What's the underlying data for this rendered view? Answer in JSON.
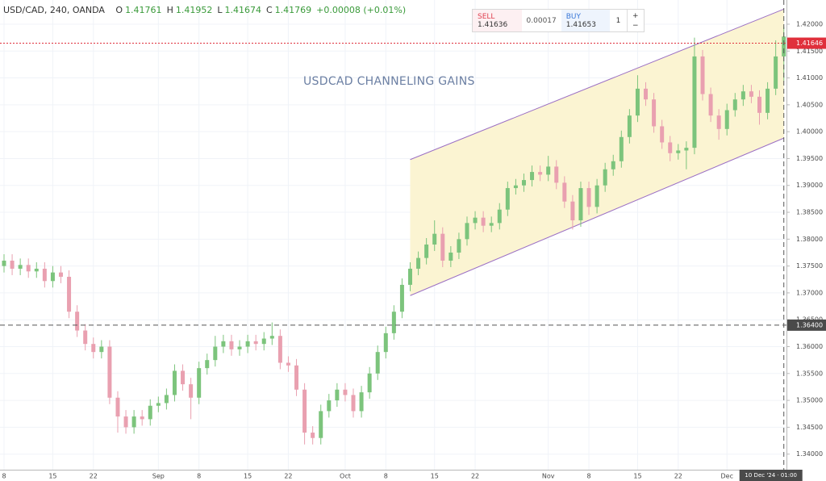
{
  "chart_data": {
    "type": "candlestick",
    "legend": {
      "symbol": "USD/CAD, 240, OANDA",
      "fields": [
        {
          "key": "O",
          "value": "1.41761"
        },
        {
          "key": "H",
          "value": "1.41952"
        },
        {
          "key": "L",
          "value": "1.41674"
        },
        {
          "key": "C",
          "value": "1.41769"
        }
      ],
      "change": "+0.00008 (+0.01%)"
    },
    "trade": {
      "sell_label": "SELL",
      "sell_price": "1.41636",
      "spread": "0.00017",
      "buy_label": "BUY",
      "buy_price": "1.41653",
      "quantity": "1",
      "plus": "+",
      "minus": "−"
    },
    "annotation": "USDCAD CHANNELING GAINS",
    "categories": [
      "8",
      null,
      null,
      null,
      null,
      null,
      "15",
      null,
      null,
      null,
      null,
      "22",
      null,
      null,
      null,
      null,
      null,
      null,
      null,
      "Sep",
      null,
      null,
      null,
      null,
      "8",
      null,
      null,
      null,
      null,
      null,
      "15",
      null,
      null,
      null,
      null,
      "22",
      null,
      null,
      null,
      null,
      null,
      null,
      "Oct",
      null,
      null,
      null,
      null,
      "8",
      null,
      null,
      null,
      null,
      null,
      "15",
      null,
      null,
      null,
      null,
      "22",
      null,
      null,
      null,
      null,
      null,
      null,
      null,
      null,
      "Nov",
      null,
      null,
      null,
      null,
      "8",
      null,
      null,
      null,
      null,
      null,
      "15",
      null,
      null,
      null,
      null,
      "22",
      null,
      null,
      null,
      null,
      null,
      "Dec",
      null,
      null,
      null,
      null,
      null,
      null,
      null
    ],
    "open": [
      1.375,
      1.376,
      1.3745,
      1.3752,
      1.374,
      1.3745,
      1.3722,
      1.3738,
      1.373,
      1.3665,
      1.363,
      1.3605,
      1.359,
      1.36,
      1.3505,
      1.347,
      1.345,
      1.347,
      1.3465,
      1.349,
      1.3495,
      1.351,
      1.3555,
      1.353,
      1.3505,
      1.356,
      1.3575,
      1.36,
      1.361,
      1.3595,
      1.36,
      1.361,
      1.3605,
      1.3615,
      1.362,
      1.357,
      1.3565,
      1.352,
      1.344,
      1.343,
      1.348,
      1.35,
      1.352,
      1.351,
      1.348,
      1.3515,
      1.355,
      1.359,
      1.3625,
      1.3665,
      1.3715,
      1.3745,
      1.3765,
      1.379,
      1.381,
      1.376,
      1.3775,
      1.38,
      1.383,
      1.384,
      1.3825,
      1.383,
      1.3855,
      1.3895,
      1.39,
      1.391,
      1.3925,
      1.392,
      1.3935,
      1.3905,
      1.387,
      1.3835,
      1.3895,
      1.386,
      1.39,
      1.393,
      1.3945,
      1.399,
      1.403,
      1.408,
      1.406,
      1.401,
      1.398,
      1.396,
      1.3965,
      1.397,
      1.414,
      1.407,
      1.403,
      1.4005,
      1.404,
      1.406,
      1.4075,
      1.4065,
      1.4035,
      1.408,
      1.414
    ],
    "high": [
      1.3772,
      1.3772,
      1.3764,
      1.3764,
      1.3757,
      1.3757,
      1.375,
      1.375,
      1.3742,
      1.3677,
      1.3642,
      1.3617,
      1.3612,
      1.3612,
      1.3517,
      1.3482,
      1.3482,
      1.3482,
      1.3502,
      1.3507,
      1.3522,
      1.3567,
      1.3567,
      1.3542,
      1.3572,
      1.3587,
      1.362,
      1.3622,
      1.3622,
      1.3612,
      1.3622,
      1.3622,
      1.3627,
      1.3645,
      1.3632,
      1.3582,
      1.3577,
      1.3532,
      1.3452,
      1.3492,
      1.3512,
      1.3532,
      1.3532,
      1.3522,
      1.3527,
      1.3562,
      1.3602,
      1.3637,
      1.3677,
      1.3727,
      1.3757,
      1.3777,
      1.3802,
      1.3835,
      1.3822,
      1.3787,
      1.3812,
      1.3842,
      1.3852,
      1.3852,
      1.3842,
      1.3867,
      1.3907,
      1.3912,
      1.3922,
      1.3937,
      1.3937,
      1.3955,
      1.3947,
      1.3917,
      1.3882,
      1.3907,
      1.3907,
      1.3912,
      1.3942,
      1.3957,
      1.4002,
      1.4042,
      1.4105,
      1.4092,
      1.4072,
      1.4022,
      1.3992,
      1.3977,
      1.3982,
      1.4175,
      1.4152,
      1.4082,
      1.4042,
      1.4052,
      1.4072,
      1.4087,
      1.4087,
      1.4077,
      1.4092,
      1.417,
      1.4195
    ],
    "low": [
      1.3738,
      1.3733,
      1.3733,
      1.3728,
      1.3728,
      1.371,
      1.371,
      1.3718,
      1.3653,
      1.3618,
      1.3593,
      1.3578,
      1.3578,
      1.3493,
      1.344,
      1.3438,
      1.3438,
      1.3453,
      1.3453,
      1.3478,
      1.3483,
      1.3498,
      1.3518,
      1.3465,
      1.3493,
      1.3548,
      1.3563,
      1.3588,
      1.3583,
      1.3583,
      1.3588,
      1.3593,
      1.3593,
      1.3603,
      1.3558,
      1.3553,
      1.3508,
      1.3418,
      1.3418,
      1.3418,
      1.3468,
      1.3488,
      1.3498,
      1.3468,
      1.3468,
      1.3503,
      1.3538,
      1.3578,
      1.3613,
      1.3653,
      1.3703,
      1.3733,
      1.3753,
      1.3778,
      1.3748,
      1.3748,
      1.3763,
      1.3788,
      1.3818,
      1.3813,
      1.3813,
      1.3818,
      1.3843,
      1.3883,
      1.3888,
      1.3898,
      1.3908,
      1.3908,
      1.3893,
      1.3858,
      1.3818,
      1.3823,
      1.3845,
      1.3848,
      1.3888,
      1.3918,
      1.3933,
      1.3978,
      1.4018,
      1.4048,
      1.3998,
      1.3968,
      1.3945,
      1.3948,
      1.393,
      1.3958,
      1.4058,
      1.4018,
      1.3985,
      1.3993,
      1.4028,
      1.4048,
      1.4053,
      1.4013,
      1.4023,
      1.4068,
      1.4095
    ],
    "close": [
      1.376,
      1.3745,
      1.3752,
      1.374,
      1.3745,
      1.3722,
      1.3738,
      1.373,
      1.3665,
      1.363,
      1.3605,
      1.359,
      1.36,
      1.3505,
      1.347,
      1.345,
      1.347,
      1.3465,
      1.349,
      1.3495,
      1.351,
      1.3555,
      1.353,
      1.3505,
      1.356,
      1.3575,
      1.36,
      1.361,
      1.3595,
      1.36,
      1.361,
      1.3605,
      1.3615,
      1.362,
      1.357,
      1.3565,
      1.352,
      1.344,
      1.343,
      1.348,
      1.35,
      1.352,
      1.351,
      1.348,
      1.3515,
      1.355,
      1.359,
      1.3625,
      1.3665,
      1.3715,
      1.3745,
      1.3765,
      1.379,
      1.381,
      1.376,
      1.3775,
      1.38,
      1.383,
      1.384,
      1.3825,
      1.383,
      1.3855,
      1.3895,
      1.39,
      1.391,
      1.3925,
      1.392,
      1.3935,
      1.3905,
      1.387,
      1.3835,
      1.3895,
      1.386,
      1.39,
      1.393,
      1.3945,
      1.399,
      1.403,
      1.408,
      1.406,
      1.401,
      1.398,
      1.396,
      1.3965,
      1.397,
      1.414,
      1.407,
      1.403,
      1.4005,
      1.404,
      1.406,
      1.4075,
      1.4065,
      1.4035,
      1.408,
      1.414,
      1.4177
    ],
    "up_color": "#7cc47c",
    "down_color": "#e9a0b0",
    "ylim": [
      1.3371,
      1.4245
    ],
    "yticks": [
      {
        "value": 1.34,
        "label": "1.34000"
      },
      {
        "value": 1.345,
        "label": "1.34500"
      },
      {
        "value": 1.35,
        "label": "1.35000"
      },
      {
        "value": 1.355,
        "label": "1.35500"
      },
      {
        "value": 1.36,
        "label": "1.36000"
      },
      {
        "value": 1.365,
        "label": "1.36500"
      },
      {
        "value": 1.37,
        "label": "1.37000"
      },
      {
        "value": 1.375,
        "label": "1.37500"
      },
      {
        "value": 1.38,
        "label": "1.38000"
      },
      {
        "value": 1.385,
        "label": "1.38500"
      },
      {
        "value": 1.39,
        "label": "1.39000"
      },
      {
        "value": 1.395,
        "label": "1.39500"
      },
      {
        "value": 1.4,
        "label": "1.40000"
      },
      {
        "value": 1.405,
        "label": "1.40500"
      },
      {
        "value": 1.41,
        "label": "1.41000"
      },
      {
        "value": 1.415,
        "label": "1.41500"
      },
      {
        "value": 1.42,
        "label": "1.42000"
      }
    ],
    "channel": {
      "start": 50,
      "end": 96,
      "upper": [
        1.3948,
        1.4228
      ],
      "lower": [
        1.3695,
        1.3988
      ],
      "color": "#9b6fc4",
      "fill": "#fbf4d2"
    },
    "current_price": {
      "value": 1.41646,
      "label": "1.41646",
      "color": "#e0303c"
    },
    "crosshair": {
      "x": 96,
      "x_label": "10 Dec '24 · 01:00",
      "y": {
        "value": 1.364,
        "label": "1.36400"
      }
    }
  }
}
